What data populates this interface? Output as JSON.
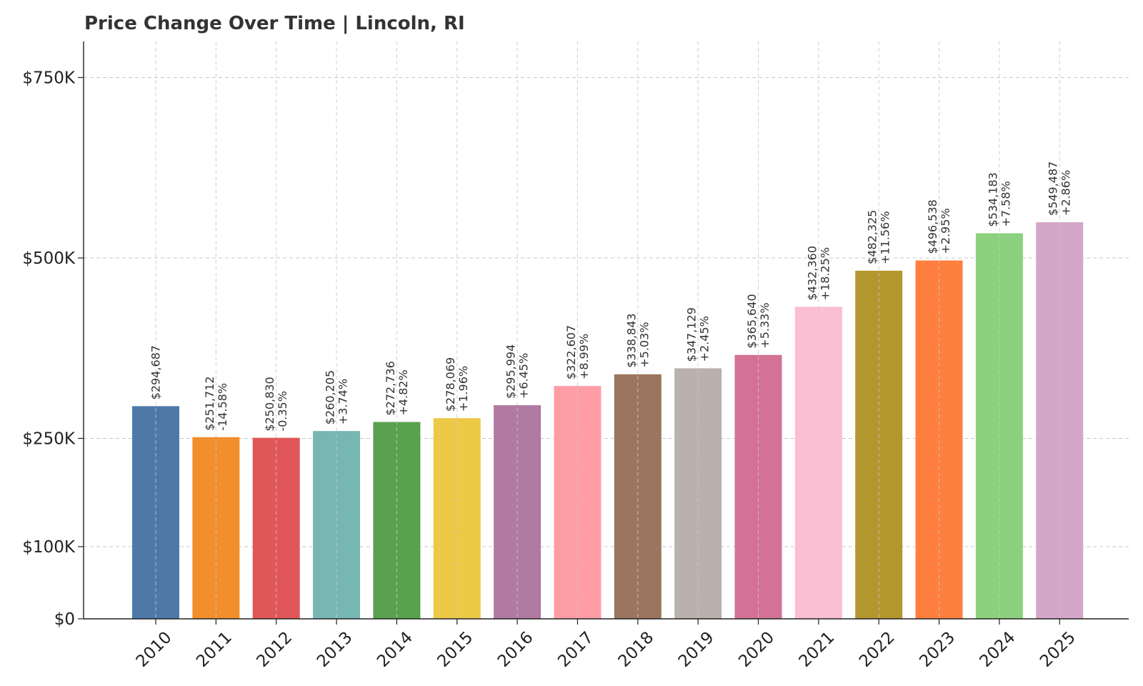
{
  "chart_data": {
    "type": "bar",
    "title": "Price Change Over Time | Lincoln, RI",
    "xlabel": "",
    "ylabel": "",
    "categories": [
      "2010",
      "2011",
      "2012",
      "2013",
      "2014",
      "2015",
      "2016",
      "2017",
      "2018",
      "2019",
      "2020",
      "2021",
      "2022",
      "2023",
      "2024",
      "2025"
    ],
    "values": [
      294687,
      251712,
      250830,
      260205,
      272736,
      278069,
      295994,
      322607,
      338843,
      347129,
      365640,
      432360,
      482325,
      496538,
      534183,
      549487
    ],
    "value_labels": [
      "$294,687",
      "$251,712",
      "$250,830",
      "$260,205",
      "$272,736",
      "$278,069",
      "$295,994",
      "$322,607",
      "$338,843",
      "$347,129",
      "$365,640",
      "$432,360",
      "$482,325",
      "$496,538",
      "$534,183",
      "$549,487"
    ],
    "change_labels": [
      "",
      "-14.58%",
      "-0.35%",
      "+3.74%",
      "+4.82%",
      "+1.96%",
      "+6.45%",
      "+8.99%",
      "+5.03%",
      "+2.45%",
      "+5.33%",
      "+18.25%",
      "+11.56%",
      "+2.95%",
      "+7.58%",
      "+2.86%"
    ],
    "colors": [
      "#4e79a7",
      "#f28e2b",
      "#e15759",
      "#76b7b2",
      "#59a14f",
      "#edc948",
      "#b07aa1",
      "#ff9da7",
      "#9c755f",
      "#bab0ac",
      "#d37295",
      "#fabfd2",
      "#b3962d",
      "#ff7f3f",
      "#8cd17d",
      "#d4a6c8"
    ],
    "yticks": [
      0,
      100000,
      250000,
      500000,
      750000
    ],
    "ytick_labels": [
      "$0",
      "$100K",
      "$250K",
      "$500K",
      "$750K"
    ],
    "ylim": [
      0,
      800000
    ],
    "grid": true
  }
}
